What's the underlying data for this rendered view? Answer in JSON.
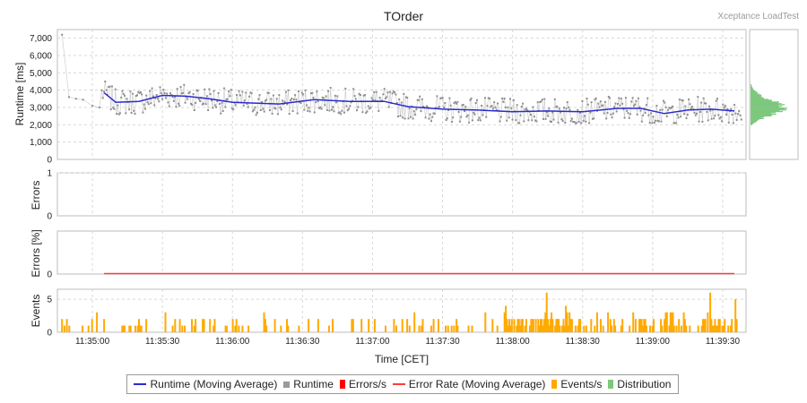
{
  "header": {
    "title": "TOrder",
    "watermark": "Xceptance LoadTest"
  },
  "chart_data": {
    "type": "line",
    "title": "TOrder",
    "xlabel": "Time [CET]",
    "x_range": [
      "11:34:45",
      "11:39:40"
    ],
    "x_ticks": [
      "11:35:00",
      "11:35:30",
      "11:36:00",
      "11:36:30",
      "11:37:00",
      "11:37:30",
      "11:38:00",
      "11:38:30",
      "11:39:00",
      "11:39:30"
    ],
    "grid": true,
    "legend_position": "bottom",
    "panels": {
      "runtime": {
        "ylabel": "Runtime [ms]",
        "ylim": [
          0,
          7500
        ],
        "y_ticks": [
          "0",
          "1,000",
          "2,000",
          "3,000",
          "4,000",
          "5,000",
          "6,000",
          "7,000"
        ],
        "runtime_points_summary": {
          "first_points_ms": [
            7200,
            3600,
            3500,
            3450,
            3100,
            3000
          ],
          "typical_range_ms": [
            2100,
            4500
          ],
          "count_approx": 560
        },
        "moving_average": {
          "x": [
            "11:35:05",
            "11:35:10",
            "11:35:20",
            "11:35:30",
            "11:35:40",
            "11:35:50",
            "11:36:00",
            "11:36:20",
            "11:36:35",
            "11:36:50",
            "11:37:05",
            "11:37:15",
            "11:37:30",
            "11:37:45",
            "11:38:00",
            "11:38:15",
            "11:38:30",
            "11:38:45",
            "11:38:55",
            "11:39:05",
            "11:39:15",
            "11:39:25",
            "11:39:35"
          ],
          "values": [
            3850,
            3300,
            3350,
            3700,
            3650,
            3500,
            3300,
            3200,
            3450,
            3350,
            3350,
            3050,
            2900,
            2850,
            2750,
            2800,
            2750,
            2950,
            2950,
            2650,
            2850,
            2900,
            2800
          ]
        },
        "distribution": {
          "range_ms": [
            2000,
            4300
          ],
          "peak_ms": 2900
        }
      },
      "errors": {
        "ylabel": "Errors",
        "ylim": [
          0,
          1
        ],
        "y_ticks": [
          "0",
          "1"
        ],
        "values": []
      },
      "error_rate": {
        "ylabel": "Errors [%]",
        "ylim": [
          0,
          100
        ],
        "y_ticks": [
          "0"
        ],
        "moving_average_start": "11:35:05",
        "moving_average_end": "11:39:35",
        "moving_average_value": 0
      },
      "events": {
        "ylabel": "Events",
        "ylim": [
          0,
          6.5
        ],
        "y_ticks": [
          "0",
          "5"
        ],
        "events_per_second": [
          2,
          0,
          1,
          0,
          2,
          0,
          1,
          0,
          0,
          0,
          0,
          0,
          0,
          0,
          0,
          0,
          0,
          1,
          0,
          0,
          0,
          0,
          1,
          0,
          0,
          2,
          0,
          0,
          0,
          3,
          0,
          0,
          0,
          0,
          0,
          2,
          0,
          0,
          0,
          0,
          0,
          0,
          0,
          0,
          0,
          0,
          0,
          0,
          0,
          0,
          1,
          1,
          1,
          0,
          0,
          0,
          1,
          1,
          0,
          0,
          0,
          1,
          0,
          1,
          2,
          1,
          1,
          0,
          0,
          0,
          2,
          0,
          0,
          0,
          0,
          0,
          0,
          0,
          0,
          0,
          0,
          0,
          0,
          0,
          0,
          0,
          3,
          0,
          0,
          0,
          0,
          0,
          1,
          0,
          2,
          0,
          0,
          0,
          2,
          0,
          1,
          0,
          1,
          0,
          0,
          0,
          0,
          0,
          2,
          0,
          1,
          2,
          0,
          0,
          0,
          0,
          0,
          2,
          2,
          0,
          0,
          0,
          0,
          2,
          0,
          0,
          1,
          2,
          0,
          0,
          0,
          0,
          0,
          0,
          0,
          0,
          1,
          1,
          0,
          0,
          0,
          0,
          2,
          0,
          1,
          2,
          0,
          1,
          0,
          0,
          1,
          0,
          0,
          0,
          0,
          1,
          0,
          0,
          0,
          0,
          0,
          0,
          0,
          0,
          0,
          0,
          0,
          0,
          3,
          2,
          1,
          0,
          0,
          0,
          0,
          0,
          0,
          2,
          0,
          0,
          0,
          0,
          1,
          0,
          0,
          0,
          0,
          2,
          1,
          0,
          0,
          0,
          0,
          0,
          0,
          0,
          0,
          1,
          0,
          0,
          0,
          0,
          0,
          0,
          0,
          2,
          0,
          0,
          0,
          0,
          0,
          0,
          0,
          2,
          0,
          0,
          0,
          0,
          0,
          0,
          0,
          0,
          1,
          0,
          0,
          2,
          0,
          0,
          0,
          0,
          0,
          0,
          0,
          0,
          0,
          0,
          0,
          0,
          0,
          0,
          0,
          2,
          2,
          0,
          0,
          0,
          0,
          0,
          0,
          2,
          0,
          0,
          0,
          0,
          0,
          2,
          0,
          0,
          0,
          0,
          2,
          0,
          0,
          0,
          0,
          0,
          0,
          0,
          0,
          1,
          0,
          0,
          0,
          0,
          0,
          0,
          2,
          0,
          1,
          0,
          0,
          0,
          0,
          2,
          0,
          0,
          0,
          2,
          0,
          1,
          0,
          0,
          0,
          3,
          0,
          0,
          0,
          1,
          0,
          1,
          2,
          0,
          0,
          0,
          0,
          0,
          0,
          1,
          0,
          2,
          0,
          0,
          0,
          2,
          0,
          0,
          0,
          0,
          0,
          1,
          0,
          1,
          0,
          0,
          1,
          0,
          1,
          0,
          2,
          1,
          0,
          0,
          0,
          0,
          0,
          0,
          0,
          0,
          1,
          0,
          0,
          1,
          0,
          0,
          0,
          0,
          0,
          0,
          0,
          0,
          0,
          0,
          3,
          0,
          0,
          0,
          0,
          0,
          2,
          0,
          0,
          0,
          1,
          0,
          0,
          0,
          0,
          0,
          3,
          4,
          2,
          1,
          2,
          1,
          2,
          0,
          2,
          0,
          1,
          2,
          2,
          1,
          2,
          2,
          0,
          1,
          2,
          0,
          0,
          1,
          2,
          2,
          2,
          0,
          2,
          0,
          2,
          1,
          2,
          2,
          1,
          2,
          3,
          6,
          2,
          1,
          2,
          3,
          2,
          0,
          1,
          2,
          2,
          2,
          1,
          0,
          1,
          2,
          1,
          4,
          3,
          1,
          3,
          2,
          2,
          0,
          0,
          1,
          0,
          1,
          2,
          2,
          0,
          0,
          1,
          0,
          1,
          0,
          0,
          0,
          2,
          0,
          0,
          1,
          0,
          3,
          0,
          0,
          2,
          0,
          1,
          0,
          0,
          0,
          3,
          0,
          2,
          1,
          0,
          2,
          1,
          0,
          0,
          0,
          0,
          1,
          2,
          0,
          0,
          0,
          0,
          0,
          1,
          0,
          0,
          3,
          0,
          2,
          0,
          0,
          2,
          2,
          2,
          1,
          2,
          2,
          1,
          0,
          0,
          1,
          0,
          1,
          2,
          0,
          0,
          0,
          0,
          0,
          2,
          1,
          0,
          2,
          3,
          3,
          0,
          1,
          3,
          3,
          3,
          1,
          0,
          1,
          0,
          2,
          0,
          1,
          0,
          3,
          2,
          1,
          0,
          0,
          1,
          0,
          0,
          0,
          0,
          0,
          0,
          1,
          0,
          0,
          1,
          2,
          2,
          2,
          0,
          3,
          0,
          6,
          2,
          1,
          1,
          2,
          1,
          1,
          2,
          2,
          0,
          1,
          1,
          2,
          0,
          0,
          1,
          0,
          1,
          2,
          0,
          0,
          5,
          2
        ]
      }
    },
    "series": [
      {
        "name": "Runtime (Moving Average)",
        "color": "#2a2ad0"
      },
      {
        "name": "Runtime",
        "color": "#9a9a9a"
      },
      {
        "name": "Errors/s",
        "color": "#ff0000"
      },
      {
        "name": "Error Rate (Moving Average)",
        "color": "#ff3b3b"
      },
      {
        "name": "Events/s",
        "color": "#ffaa00"
      },
      {
        "name": "Distribution",
        "color": "#7ec87e"
      }
    ]
  }
}
